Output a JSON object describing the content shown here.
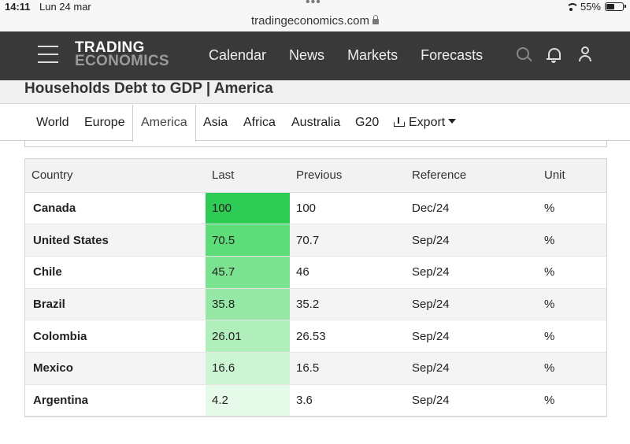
{
  "status": {
    "time": "14:11",
    "date": "Lun 24 mar",
    "url": "tradingeconomics.com",
    "battery": "55%",
    "battery_level": 0.55
  },
  "header": {
    "logo_line1": "TRADING",
    "logo_line2": "ECONOMICS",
    "nav": [
      "Calendar",
      "News",
      "Markets",
      "Forecasts"
    ],
    "icons": [
      "search-icon",
      "bell-icon",
      "user-icon"
    ]
  },
  "page": {
    "title": "Households Debt to GDP | America"
  },
  "tabs": [
    "World",
    "Europe",
    "America",
    "Asia",
    "Africa",
    "Australia",
    "G20"
  ],
  "active_tab": "America",
  "export_label": "Export",
  "table": {
    "headers": [
      "Country",
      "Last",
      "Previous",
      "Reference",
      "Unit"
    ],
    "rows": [
      {
        "country": "Canada",
        "last": "100",
        "previous": "100",
        "reference": "Dec/24",
        "unit": "%"
      },
      {
        "country": "United States",
        "last": "70.5",
        "previous": "70.7",
        "reference": "Sep/24",
        "unit": "%"
      },
      {
        "country": "Chile",
        "last": "45.7",
        "previous": "46",
        "reference": "Sep/24",
        "unit": "%"
      },
      {
        "country": "Brazil",
        "last": "35.8",
        "previous": "35.2",
        "reference": "Sep/24",
        "unit": "%"
      },
      {
        "country": "Colombia",
        "last": "26.01",
        "previous": "26.53",
        "reference": "Sep/24",
        "unit": "%"
      },
      {
        "country": "Mexico",
        "last": "16.6",
        "previous": "16.5",
        "reference": "Sep/24",
        "unit": "%"
      },
      {
        "country": "Argentina",
        "last": "4.2",
        "previous": "3.6",
        "reference": "Sep/24",
        "unit": "%"
      }
    ],
    "heat_colors": [
      "#2ecc55",
      "#5fdc7a",
      "#7be290",
      "#96e8a6",
      "#b0efbc",
      "#ccf5d3",
      "#e6faea"
    ]
  }
}
